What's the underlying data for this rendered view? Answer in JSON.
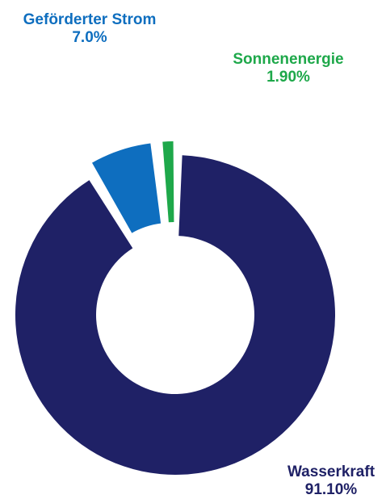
{
  "chart_data": {
    "type": "pie",
    "variant": "donut",
    "title": "",
    "slices": [
      {
        "label": "Wasserkraft",
        "value": 91.1,
        "display": "91.10%",
        "color": "#1f2166"
      },
      {
        "label": "Geförderter Strom",
        "value": 7.0,
        "display": "7.0%",
        "color": "#0e6ebf"
      },
      {
        "label": "Sonnenenergie",
        "value": 1.9,
        "display": "1.90%",
        "color": "#1ea84a"
      }
    ],
    "exploded": [
      "Geförderter Strom",
      "Sonnenenergie"
    ],
    "legend": "none"
  }
}
